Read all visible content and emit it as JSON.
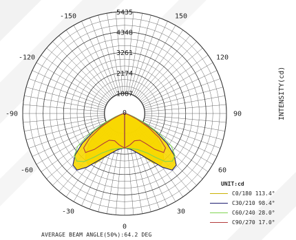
{
  "chart_data": {
    "type": "polar",
    "rings": [
      1087,
      2174,
      3261,
      4348,
      5435
    ],
    "ring_labels": [
      "1087",
      "2174",
      "3261",
      "4348",
      "5435"
    ],
    "center_label": "0",
    "angle_labels": [
      {
        "text": "150",
        "angle": 150
      },
      {
        "text": "-150",
        "angle": -150
      },
      {
        "text": "120",
        "angle": 120
      },
      {
        "text": "-120",
        "angle": -120
      },
      {
        "text": "90",
        "angle": 90
      },
      {
        "text": "-90",
        "angle": -90
      },
      {
        "text": "60",
        "angle": 60
      },
      {
        "text": "-60",
        "angle": -60
      },
      {
        "text": "30",
        "angle": 30
      },
      {
        "text": "-30",
        "angle": -30
      },
      {
        "text": "0",
        "angle": 0
      }
    ],
    "ylabel": "INTENSITY(cd)",
    "unit_label": "UNIT:cd",
    "caption": "AVERAGE BEAM ANGLE(50%):64.2 DEG",
    "max_value": 5435,
    "series": [
      {
        "name": "C0/180 113.4°",
        "color": "#f0d400",
        "fill": "#f7d700",
        "stroke": "#c9b000",
        "points": [
          [
            0,
            1850
          ],
          [
            10,
            1950
          ],
          [
            20,
            2300
          ],
          [
            30,
            3050
          ],
          [
            35,
            3350
          ],
          [
            40,
            3250
          ],
          [
            45,
            2900
          ],
          [
            50,
            2450
          ],
          [
            55,
            1950
          ],
          [
            60,
            1300
          ],
          [
            65,
            700
          ],
          [
            70,
            350
          ],
          [
            80,
            100
          ],
          [
            90,
            0
          ]
        ]
      },
      {
        "name": "C30/210 98.4°",
        "color": "#1a1a6e",
        "fill": "#f7d700",
        "stroke": "#1a1a6e",
        "points": [
          [
            0,
            1850
          ],
          [
            10,
            1950
          ],
          [
            20,
            2300
          ],
          [
            30,
            2950
          ],
          [
            35,
            3500
          ],
          [
            40,
            3950
          ],
          [
            45,
            3900
          ],
          [
            50,
            3450
          ],
          [
            55,
            2750
          ],
          [
            60,
            1900
          ],
          [
            65,
            1100
          ],
          [
            70,
            500
          ],
          [
            80,
            150
          ],
          [
            90,
            0
          ]
        ]
      },
      {
        "name": "C60/240 28.0°",
        "color": "#9fe66b",
        "fill": "none",
        "stroke": "#7fd44f",
        "points": [
          [
            0,
            1850
          ],
          [
            10,
            1900
          ],
          [
            20,
            2050
          ],
          [
            30,
            2450
          ],
          [
            35,
            2850
          ],
          [
            40,
            3350
          ],
          [
            45,
            3600
          ],
          [
            50,
            3500
          ],
          [
            55,
            3050
          ],
          [
            60,
            2150
          ],
          [
            65,
            1200
          ],
          [
            70,
            550
          ],
          [
            80,
            150
          ],
          [
            90,
            0
          ]
        ]
      },
      {
        "name": "C90/270 17.0°",
        "color": "#b23b3b",
        "fill": "none",
        "stroke": "#b33a3a",
        "points": [
          [
            0,
            1850
          ],
          [
            10,
            1700
          ],
          [
            20,
            1550
          ],
          [
            30,
            1650
          ],
          [
            35,
            1950
          ],
          [
            40,
            2500
          ],
          [
            45,
            2950
          ],
          [
            50,
            2850
          ],
          [
            55,
            2250
          ],
          [
            60,
            1450
          ],
          [
            65,
            750
          ],
          [
            70,
            300
          ],
          [
            80,
            80
          ],
          [
            90,
            0
          ]
        ]
      }
    ]
  }
}
